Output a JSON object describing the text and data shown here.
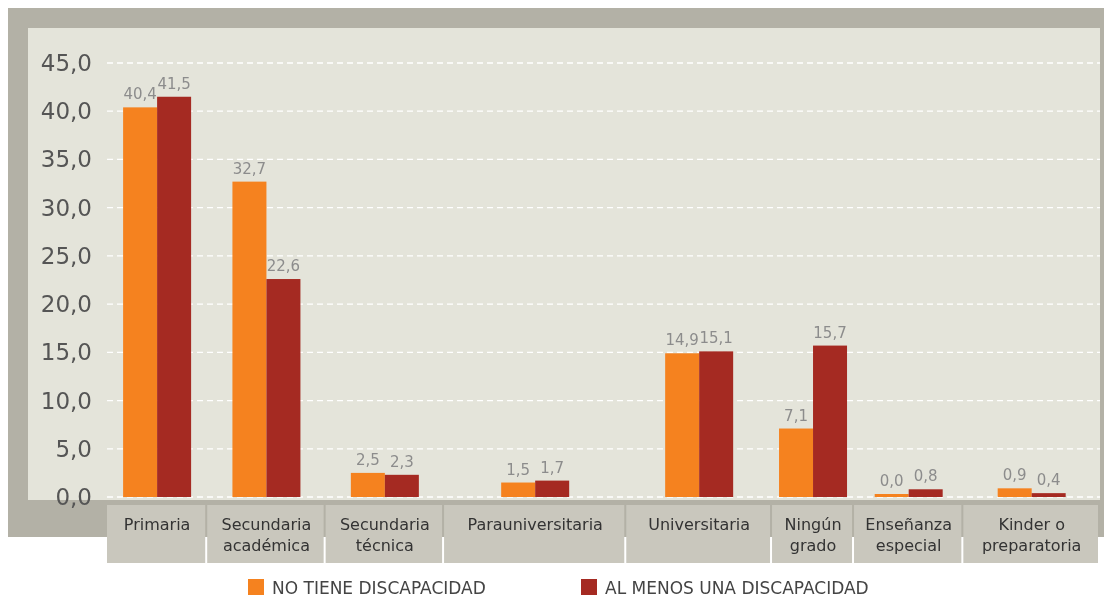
{
  "chart_data": {
    "type": "bar",
    "categories": [
      "Primaria",
      "Secundaria\nacadémica",
      "Secundaria\ntécnica",
      "Parauniversitaria",
      "Universitaria",
      "Ningún\ngrado",
      "Enseñanza\nespecial",
      "Kinder o\npreparatoria"
    ],
    "series": [
      {
        "name": "NO TIENE DISCAPACIDAD",
        "color": "#f5821f",
        "values": [
          40.4,
          32.7,
          2.5,
          1.5,
          14.9,
          7.1,
          0.0,
          0.9
        ],
        "value_labels": [
          "40,4",
          "32,7",
          "2,5",
          "1,5",
          "14,9",
          "7,1",
          "0,0",
          "0,9"
        ]
      },
      {
        "name": "AL MENOS UNA DISCAPACIDAD",
        "color": "#a52a22",
        "values": [
          41.5,
          22.6,
          2.3,
          1.7,
          15.1,
          15.7,
          0.8,
          0.4
        ],
        "value_labels": [
          "41,5",
          "22,6",
          "2,3",
          "1,7",
          "15,1",
          "15,7",
          "0,8",
          "0,4"
        ]
      }
    ],
    "ylim": [
      0,
      45
    ],
    "yticks": [
      {
        "value": 0,
        "label": "0,0"
      },
      {
        "value": 5,
        "label": "5,0"
      },
      {
        "value": 10,
        "label": "10,0"
      },
      {
        "value": 15,
        "label": "15,0"
      },
      {
        "value": 20,
        "label": "20,0"
      },
      {
        "value": 25,
        "label": "25,0"
      },
      {
        "value": 30,
        "label": "30,0"
      },
      {
        "value": 35,
        "label": "35,0"
      },
      {
        "value": 40,
        "label": "40,0"
      },
      {
        "value": 45,
        "label": "45,0"
      }
    ],
    "grid": "y",
    "legend": "bottom"
  }
}
